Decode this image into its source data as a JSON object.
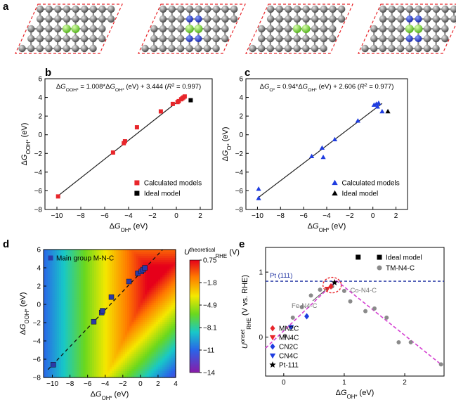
{
  "panel_a": {
    "label": "a",
    "structures": [
      {
        "name": "structure-1",
        "metal_color": "#8ee04a"
      },
      {
        "name": "structure-2",
        "metal_color": "#8ee04a"
      },
      {
        "name": "structure-3",
        "metal_color": "#8ee04a"
      },
      {
        "name": "structure-4",
        "metal_color": "#8ee04a"
      }
    ]
  },
  "chart_data": [
    {
      "panel": "b",
      "type": "scatter",
      "equation": "ΔG_OOH* = 1.008*ΔG_OH* (eV) + 3.444 (R² = 0.997)",
      "xlabel": "ΔG_OH* (eV)",
      "ylabel": "ΔG_OOH* (eV)",
      "xlim": [
        -11,
        3
      ],
      "ylim": [
        -8,
        6
      ],
      "xticks": [
        -10,
        -8,
        -6,
        -4,
        -2,
        0,
        2
      ],
      "yticks": [
        -8,
        -6,
        -4,
        -2,
        0,
        2,
        4,
        6
      ],
      "fit": {
        "slope": 1.008,
        "intercept": 3.444,
        "x_range": [
          -10.0,
          0.8
        ]
      },
      "legend_position": "bottom-right",
      "series": [
        {
          "name": "Calculated models",
          "marker": "square",
          "color": "#e8262b",
          "x": [
            -9.9,
            -5.3,
            -4.4,
            -4.3,
            -3.3,
            -1.3,
            -0.3,
            0.1,
            0.2,
            0.4,
            0.5,
            0.6,
            0.7
          ],
          "y": [
            -6.6,
            -1.9,
            -0.9,
            -0.7,
            0.8,
            2.5,
            3.3,
            3.5,
            3.6,
            3.8,
            3.9,
            4.0,
            4.1
          ]
        },
        {
          "name": "Ideal model",
          "marker": "square",
          "color": "#000000",
          "x": [
            1.2
          ],
          "y": [
            3.7
          ]
        }
      ]
    },
    {
      "panel": "c",
      "type": "scatter",
      "equation": "ΔG_O* = 0.94*ΔG_OH* (eV) + 2.606 (R² = 0.977)",
      "xlabel": "ΔG_OH* (eV)",
      "ylabel": "ΔG_O* (eV)",
      "xlim": [
        -11,
        3
      ],
      "ylim": [
        -8,
        6
      ],
      "xticks": [
        -10,
        -8,
        -6,
        -4,
        -2,
        0,
        2
      ],
      "yticks": [
        -8,
        -6,
        -4,
        -2,
        0,
        2,
        4,
        6
      ],
      "fit": {
        "slope": 0.94,
        "intercept": 2.606,
        "x_range": [
          -10.0,
          0.8
        ]
      },
      "legend_position": "bottom-right",
      "series": [
        {
          "name": "Calculated models",
          "marker": "triangle-up",
          "color": "#1f3de0",
          "x": [
            -9.9,
            -9.9,
            -5.3,
            -4.4,
            -4.3,
            -3.3,
            -1.3,
            0.1,
            0.3,
            0.4,
            0.5,
            0.8
          ],
          "y": [
            -6.8,
            -5.8,
            -2.3,
            -1.4,
            -2.4,
            -0.5,
            1.5,
            3.2,
            3.3,
            3.0,
            3.4,
            2.5
          ]
        },
        {
          "name": "Ideal model",
          "marker": "triangle-up",
          "color": "#000000",
          "x": [
            1.3
          ],
          "y": [
            2.5
          ]
        }
      ]
    },
    {
      "panel": "d",
      "type": "heatmap",
      "xlabel": "ΔG_OH* (eV)",
      "ylabel": "ΔG_OOH* (eV)",
      "xlim": [
        -11,
        4
      ],
      "ylim": [
        -8,
        6
      ],
      "xticks": [
        -10,
        -8,
        -6,
        -4,
        -2,
        0,
        2,
        4
      ],
      "yticks": [
        -8,
        -6,
        -4,
        -2,
        0,
        2,
        4,
        6
      ],
      "colorbar": {
        "title": "U_RHE^theoretical (V)",
        "ticks": [
          0.75,
          -1.8,
          -4.9,
          -8.1,
          -11,
          -14
        ],
        "range": [
          -14,
          0.75
        ]
      },
      "series": [
        {
          "name": "Main group M-N-C",
          "marker": "square",
          "color": "#2b3aa8",
          "x": [
            -9.9,
            -5.3,
            -4.4,
            -4.3,
            -3.3,
            -1.3,
            -0.3,
            0.1,
            0.3,
            0.5
          ],
          "y": [
            -6.6,
            -1.9,
            -0.9,
            -0.7,
            0.8,
            2.5,
            3.4,
            3.6,
            3.8,
            4.0
          ]
        }
      ]
    },
    {
      "panel": "e",
      "type": "scatter",
      "xlabel": "ΔG_OH* (eV)",
      "ylabel": "U_RHE^onset (V vs. RHE)",
      "xlim": [
        -0.3,
        2.65
      ],
      "ylim": [
        -0.6,
        1.38
      ],
      "xticks": [
        0,
        1,
        2
      ],
      "yticks": [
        0,
        1
      ],
      "reference_line": {
        "label": "Pt (111)",
        "y": 0.86,
        "color": "#1c2fa0"
      },
      "volcano": {
        "color": "#d43fd1",
        "left": [
          [
            -0.3,
            -0.17
          ],
          [
            0.87,
            0.87
          ]
        ],
        "right": [
          [
            0.87,
            0.87
          ],
          [
            2.6,
            -0.42
          ]
        ]
      },
      "annotations": [
        {
          "text": "Fe-N4-C",
          "x": 0.13,
          "y": 0.45
        },
        {
          "text": "Co-N4-C",
          "x": 1.1,
          "y": 0.72
        }
      ],
      "legend_top": [
        {
          "name": "Ideal model",
          "marker": "square",
          "color": "#000000"
        },
        {
          "name": "TM-N4-C",
          "marker": "circle",
          "color": "#8a8a8a"
        }
      ],
      "legend_bottom": [
        {
          "name": "MN2C",
          "marker": "diamond",
          "color": "#e8262b"
        },
        {
          "name": "MN4C",
          "marker": "triangle-down",
          "color": "#e8262b"
        },
        {
          "name": "CN2C",
          "marker": "diamond",
          "color": "#1f3de0"
        },
        {
          "name": "CN4C",
          "marker": "triangle-down",
          "color": "#1f3de0"
        },
        {
          "name": "Pt-111",
          "marker": "star",
          "color": "#000000"
        }
      ],
      "series": [
        {
          "name": "Ideal model",
          "marker": "square",
          "color": "#000000",
          "x": [
            1.23
          ],
          "y": [
            1.23
          ]
        },
        {
          "name": "TM-N4-C",
          "marker": "circle",
          "color": "#8a8a8a",
          "x": [
            0.02,
            0.15,
            0.3,
            0.45,
            0.6,
            0.8,
            1.0,
            1.1,
            1.35,
            1.5,
            1.7,
            1.9,
            2.1,
            2.6
          ],
          "y": [
            0.02,
            0.3,
            0.46,
            0.64,
            0.73,
            0.78,
            0.71,
            0.55,
            0.4,
            0.44,
            0.3,
            -0.08,
            -0.08,
            -0.42
          ]
        },
        {
          "name": "MN2C",
          "marker": "diamond",
          "color": "#e8262b",
          "x": [
            0.78
          ],
          "y": [
            0.78
          ]
        },
        {
          "name": "MN4C",
          "marker": "triangle-down",
          "color": "#e8262b",
          "x": [
            0.72
          ],
          "y": [
            0.74
          ]
        },
        {
          "name": "CN2C",
          "marker": "diamond",
          "color": "#1f3de0",
          "x": [
            0.38
          ],
          "y": [
            0.32
          ]
        },
        {
          "name": "CN4C",
          "marker": "triangle-down",
          "color": "#1f3de0",
          "x": [
            0.12
          ],
          "y": [
            0.15
          ]
        },
        {
          "name": "Pt-111",
          "marker": "star",
          "color": "#000000",
          "x": [
            0.84
          ],
          "y": [
            0.84
          ]
        }
      ]
    }
  ]
}
